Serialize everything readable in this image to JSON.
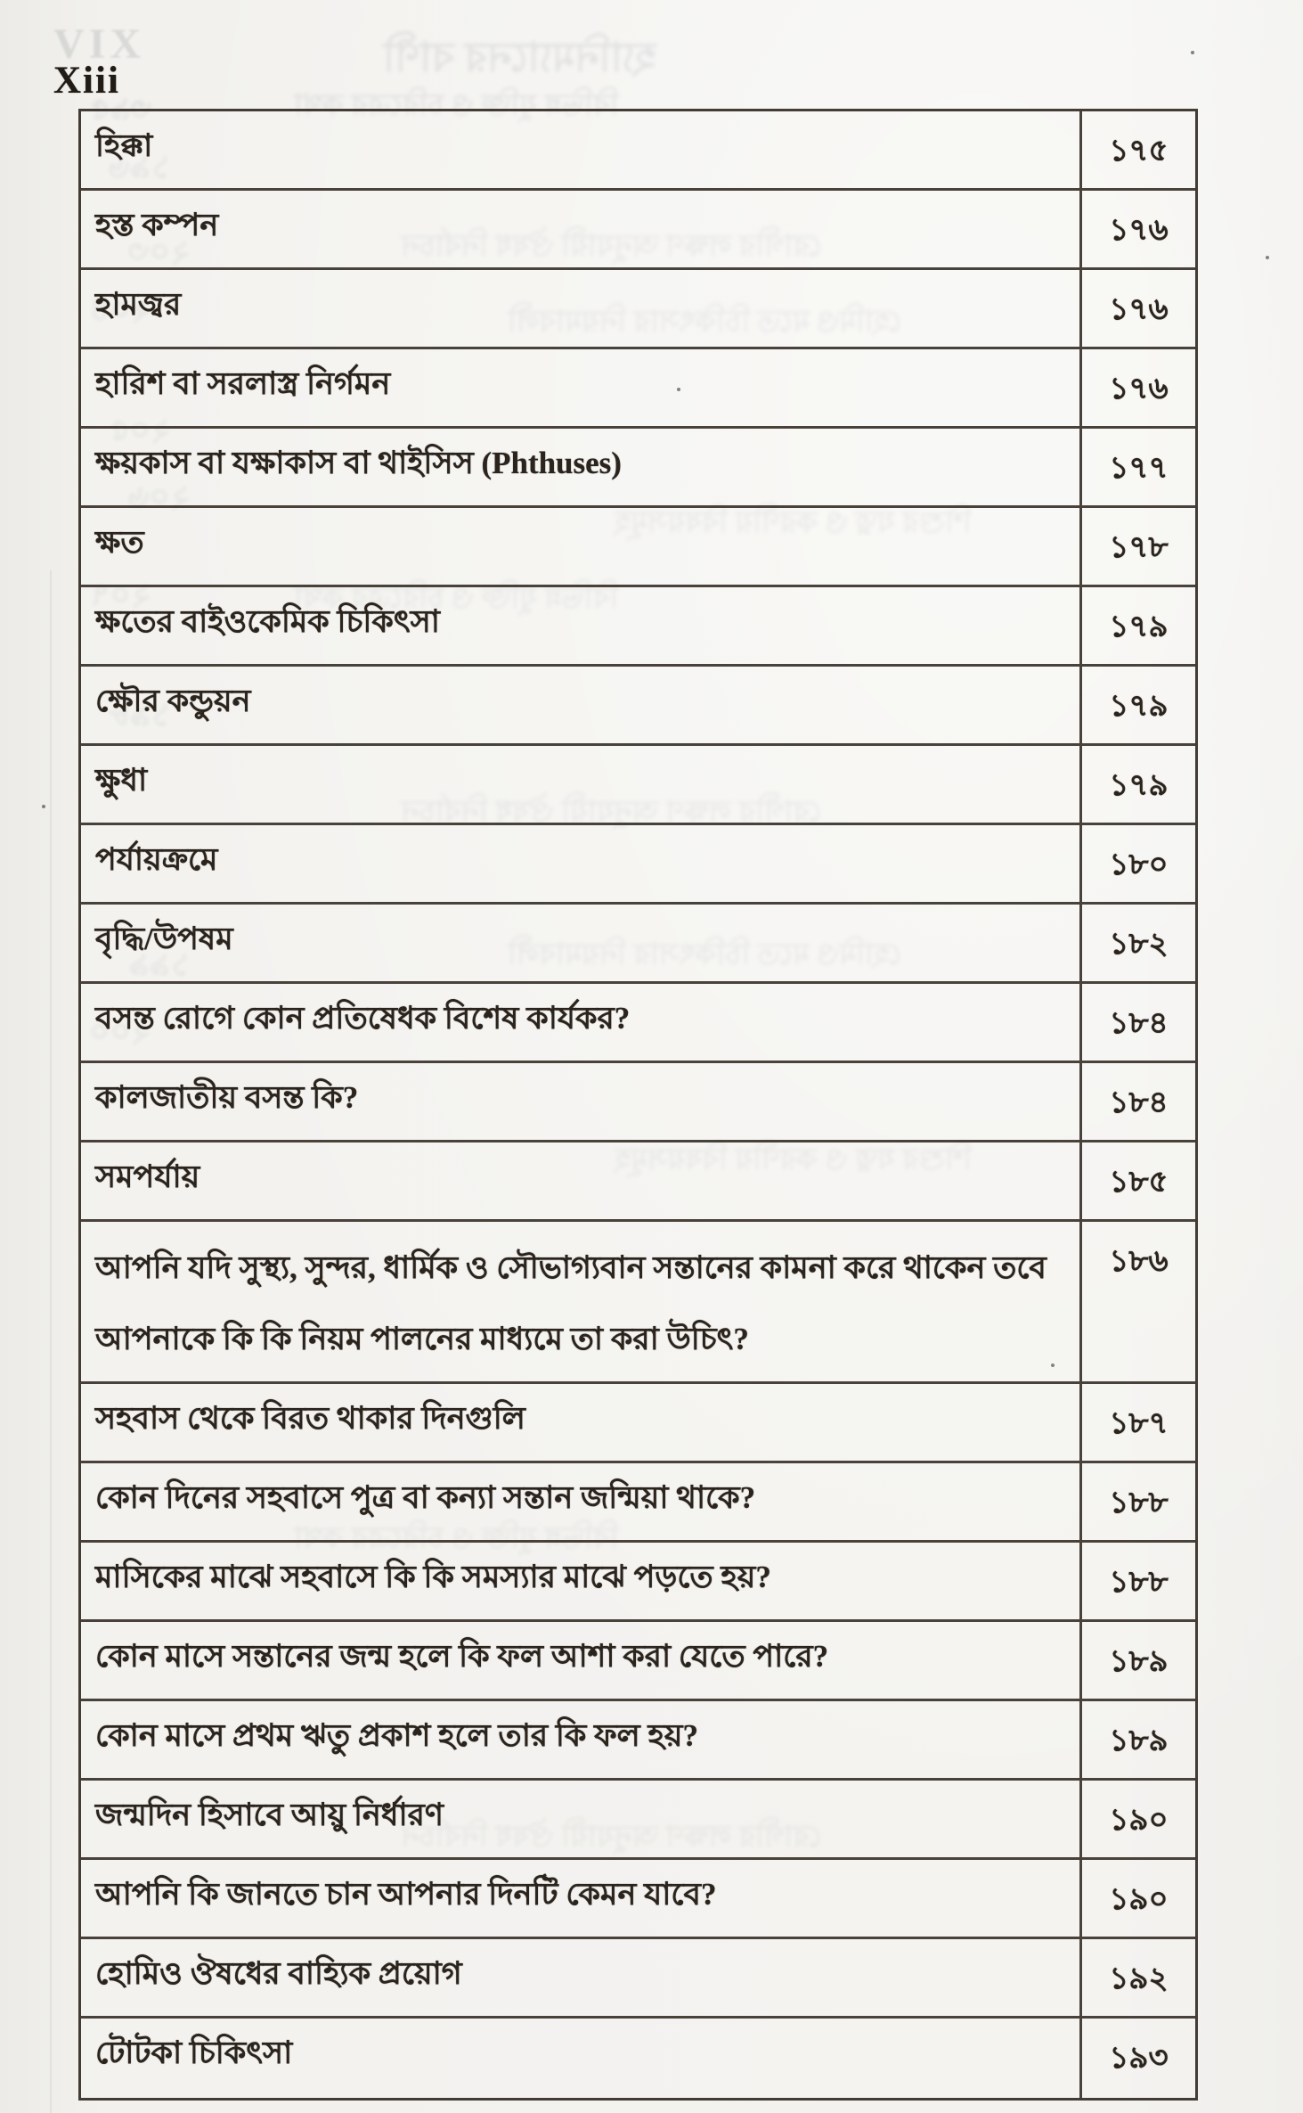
{
  "page": {
    "margin_label_faint": "VIX",
    "margin_label": "Xiii"
  },
  "toc": {
    "rows": [
      {
        "title": "হিক্কা",
        "page": "১৭৫"
      },
      {
        "title": "হস্ত কম্পন",
        "page": "১৭৬"
      },
      {
        "title": "হামজ্বর",
        "page": "১৭৬"
      },
      {
        "title": "হারিশ বা সরলাস্ত্র নির্গমন",
        "page": "১৭৬"
      },
      {
        "title": "ক্ষয়কাস বা যক্ষাকাস বা থাইসিস (Phthuses)",
        "page": "১৭৭"
      },
      {
        "title": "ক্ষত",
        "page": "১৭৮"
      },
      {
        "title": "ক্ষতের বাইওকেমিক চিকিৎসা",
        "page": "১৭৯"
      },
      {
        "title": "ক্ষৌর কন্ডুয়ন",
        "page": "১৭৯"
      },
      {
        "title": "ক্ষুধা",
        "page": "১৭৯"
      },
      {
        "title": "পর্যায়ক্রমে",
        "page": "১৮০"
      },
      {
        "title": "বৃদ্ধি/উপষম",
        "page": "১৮২"
      },
      {
        "title": "বসন্ত রোগে কোন প্রতিষেধক বিশেষ কার্যকর?",
        "page": "১৮৪"
      },
      {
        "title": "কালজাতীয় বসন্ত কি?",
        "page": "১৮৪"
      },
      {
        "title": "সমপর্যায়",
        "page": "১৮৫"
      },
      {
        "title": "আপনি যদি সুস্থ্য, সুন্দর, ধার্মিক ও সৌভাগ্যবান সন্তানের কামনা করে থাকেন তবে আপনাকে কি কি নিয়ম পালনের মাধ্যমে তা করা উচিৎ?",
        "page": "১৮৬",
        "tall": true
      },
      {
        "title": "সহবাস থেকে বিরত থাকার দিনগুলি",
        "page": "১৮৭"
      },
      {
        "title": "কোন দিনের সহবাসে পুত্র বা কন্যা সন্তান জন্মিয়া থাকে?",
        "page": "১৮৮"
      },
      {
        "title": "মাসিকের মাঝে সহবাসে কি কি সমস্যার মাঝে পড়তে হয়?",
        "page": "১৮৮"
      },
      {
        "title": "কোন মাসে সন্তানের জন্ম হলে কি ফল আশা করা যেতে পারে?",
        "page": "১৮৯"
      },
      {
        "title": "কোন মাসে প্রথম ঋতু প্রকাশ হলে তার কি ফল হয়?",
        "page": "১৮৯"
      },
      {
        "title": "জন্মদিন হিসাবে আয়ু নির্ধারণ",
        "page": "১৯০"
      },
      {
        "title": "আপনি কি জানতে চান আপনার দিনটি কেমন যাবে?",
        "page": "১৯০"
      },
      {
        "title": "হোমিও ঔষধের বাহ্যিক প্রয়োগ",
        "page": "১৯২"
      },
      {
        "title": "টোটকা চিকিৎসা",
        "page": "১৯৩"
      }
    ]
  },
  "ghosts": {
    "title": "হ্যানিম্যানের বাণী",
    "numbers": [
      "৩৯৫",
      "১৯৬",
      "২০৩",
      "২০৪",
      "২০৫",
      "২০৬",
      "২০৭",
      "১৯৮",
      "১৯৯",
      "২০০"
    ],
    "lines": [
      "বিভিন্ন যুক্তি ও চরিত্রের কথা",
      "রোগীর লক্ষণ অনুযায়ী ঔষধ নির্বাচন",
      "হোমিও মতে চিকিৎসার নিয়মাবলী",
      "শিশুর যত্ন ও করণীয় বিষয়সমূহ"
    ]
  },
  "colors": {
    "paper": "#f1f0ed",
    "ink": "#2b241d",
    "line": "#2a221a"
  }
}
